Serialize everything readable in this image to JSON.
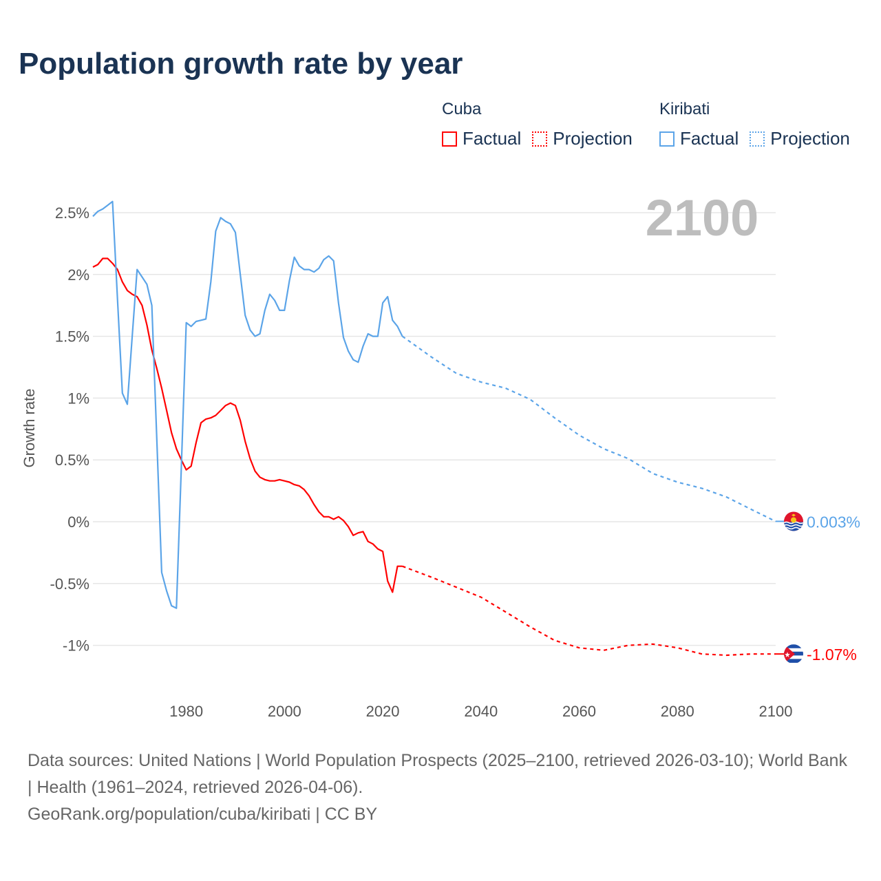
{
  "title": "Population growth rate by year",
  "legend": {
    "groups": [
      {
        "name": "Cuba",
        "factual": "Factual",
        "projection": "Projection",
        "color": "#ff0000"
      },
      {
        "name": "Kiribati",
        "factual": "Factual",
        "projection": "Projection",
        "color": "#5ba4e8"
      }
    ]
  },
  "year_display": "2100",
  "footer": {
    "sources": "Data sources: United Nations | World Population Prospects (2025–2100, retrieved 2026-03-10); World Bank | Health (1961–2024, retrieved 2026-04-06).",
    "credit": "GeoRank.org/population/cuba/kiribati | CC BY"
  },
  "chart_data": {
    "type": "line",
    "title": "Population growth rate by year",
    "xlabel": "",
    "ylabel": "Growth rate",
    "xlim": [
      1961,
      2100
    ],
    "ylim": [
      -1.25,
      2.75
    ],
    "x_ticks": [
      "1980",
      "2000",
      "2020",
      "2040",
      "2060",
      "2080",
      "2100"
    ],
    "y_ticks": [
      {
        "v": 2.5,
        "label": "2.5%"
      },
      {
        "v": 2,
        "label": "2%"
      },
      {
        "v": 1.5,
        "label": "1.5%"
      },
      {
        "v": 1,
        "label": "1%"
      },
      {
        "v": 0.5,
        "label": "0.5%"
      },
      {
        "v": 0,
        "label": "0%"
      },
      {
        "v": -0.5,
        "label": "-0.5%"
      },
      {
        "v": -1,
        "label": "-1%"
      }
    ],
    "grid": true,
    "legend_position": "top-right",
    "series": [
      {
        "name": "Cuba",
        "color": "#ff0000",
        "end_label": "-1.07%",
        "flag": "cuba-flag",
        "factual_start": 1961,
        "factual": [
          2.06,
          2.08,
          2.13,
          2.13,
          2.09,
          2.04,
          1.94,
          1.87,
          1.84,
          1.82,
          1.75,
          1.59,
          1.39,
          1.24,
          1.08,
          0.9,
          0.72,
          0.59,
          0.5,
          0.42,
          0.45,
          0.64,
          0.8,
          0.83,
          0.84,
          0.86,
          0.9,
          0.94,
          0.96,
          0.94,
          0.82,
          0.65,
          0.51,
          0.41,
          0.36,
          0.34,
          0.33,
          0.33,
          0.34,
          0.33,
          0.32,
          0.3,
          0.29,
          0.26,
          0.21,
          0.14,
          0.08,
          0.04,
          0.04,
          0.02,
          0.04,
          0.01,
          -0.04,
          -0.11,
          -0.09,
          -0.08,
          -0.16,
          -0.18,
          -0.22,
          -0.24,
          -0.48,
          -0.57,
          -0.36,
          -0.36
        ],
        "projection_x": [
          2024,
          2030,
          2035,
          2040,
          2045,
          2050,
          2055,
          2060,
          2065,
          2070,
          2075,
          2080,
          2085,
          2090,
          2095,
          2100
        ],
        "projection": [
          -0.36,
          -0.45,
          -0.53,
          -0.61,
          -0.73,
          -0.85,
          -0.96,
          -1.02,
          -1.04,
          -1.0,
          -0.99,
          -1.02,
          -1.07,
          -1.08,
          -1.07,
          -1.07
        ]
      },
      {
        "name": "Kiribati",
        "color": "#5ba4e8",
        "end_label": "0.003%",
        "flag": "kiribati-flag",
        "factual_start": 1961,
        "factual": [
          2.47,
          2.51,
          2.53,
          2.56,
          2.59,
          1.8,
          1.04,
          0.95,
          1.5,
          2.04,
          1.98,
          1.92,
          1.75,
          0.67,
          -0.41,
          -0.56,
          -0.68,
          -0.7,
          0.45,
          1.61,
          1.58,
          1.62,
          1.63,
          1.64,
          1.94,
          2.35,
          2.46,
          2.43,
          2.41,
          2.34,
          2.0,
          1.67,
          1.55,
          1.5,
          1.52,
          1.71,
          1.84,
          1.79,
          1.71,
          1.71,
          1.95,
          2.14,
          2.07,
          2.04,
          2.04,
          2.02,
          2.05,
          2.12,
          2.15,
          2.11,
          1.77,
          1.49,
          1.38,
          1.31,
          1.29,
          1.42,
          1.52,
          1.5,
          1.5,
          1.77,
          1.82,
          1.63,
          1.58,
          1.5
        ],
        "projection_x": [
          2024,
          2030,
          2035,
          2040,
          2045,
          2050,
          2055,
          2060,
          2065,
          2070,
          2075,
          2080,
          2085,
          2090,
          2095,
          2100
        ],
        "projection": [
          1.5,
          1.33,
          1.2,
          1.13,
          1.08,
          0.99,
          0.84,
          0.7,
          0.59,
          0.51,
          0.39,
          0.32,
          0.27,
          0.2,
          0.1,
          0.003
        ]
      }
    ]
  }
}
